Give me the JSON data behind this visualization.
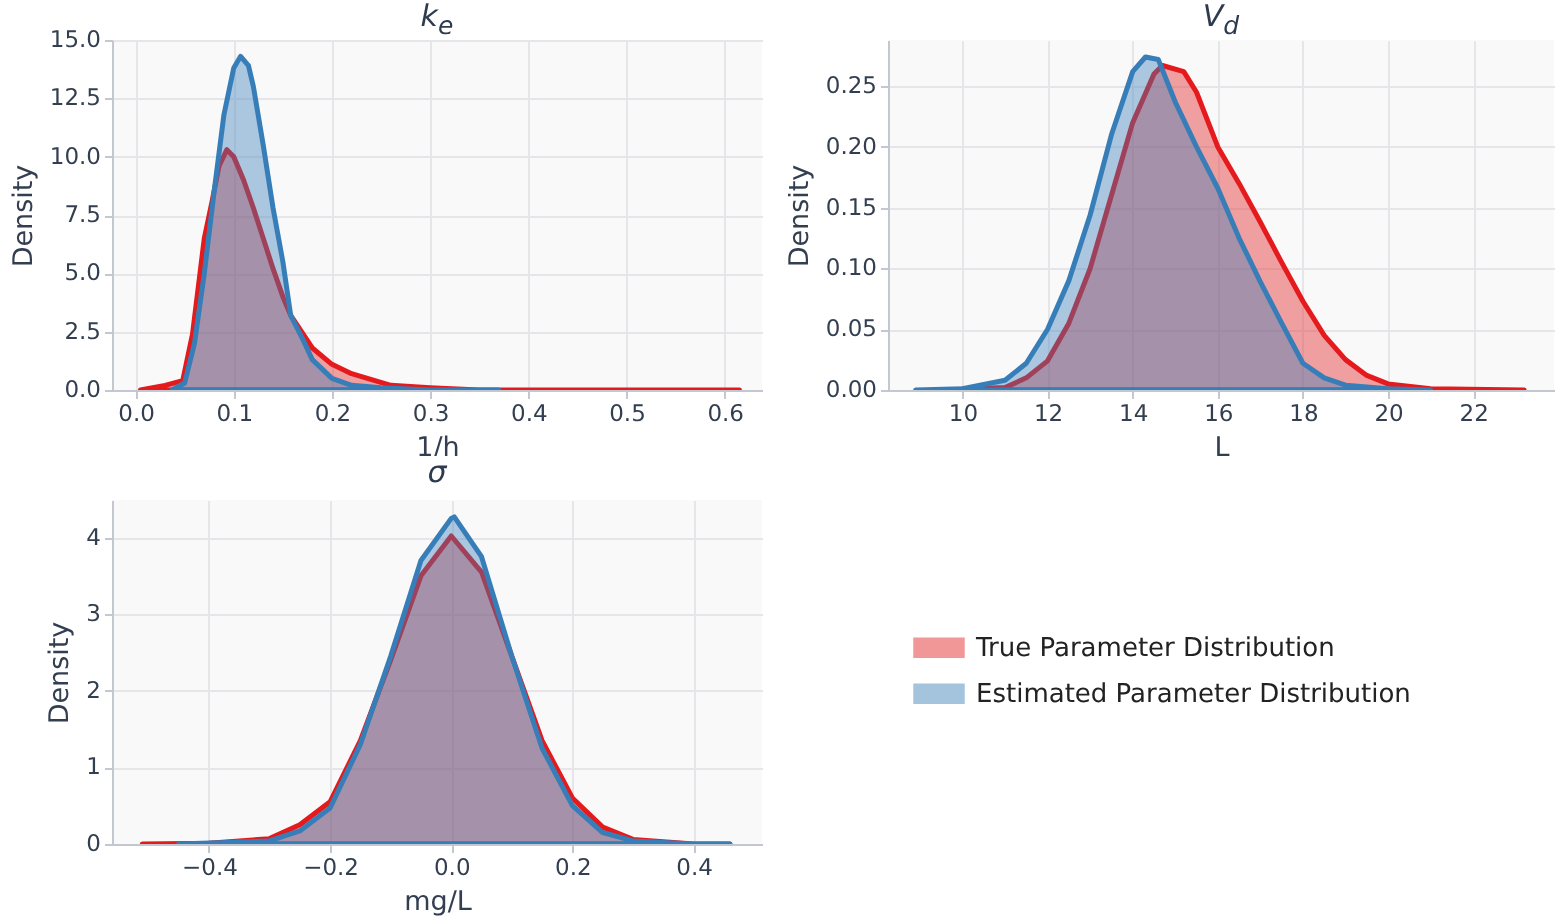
{
  "chart_data": [
    {
      "type": "area",
      "title": "k$_{e}$",
      "xlabel": "1/h",
      "ylabel": "Density",
      "xlim": [
        -0.024,
        0.638
      ],
      "ylim": [
        0,
        15
      ],
      "xticks": [
        {
          "value": 0,
          "label": "0.0"
        },
        0.1,
        0.2,
        0.3,
        0.4,
        0.5,
        0.6
      ],
      "yticks": [
        {
          "value": 0,
          "label": "0.0"
        },
        2.5,
        {
          "value": 5,
          "label": "5.0"
        },
        7.5,
        {
          "value": 10,
          "label": "10.0"
        },
        12.5,
        {
          "value": 15,
          "label": "15.0"
        }
      ],
      "grid": true,
      "series": [
        {
          "color": "#e41a1c",
          "x": [
            0.005,
            0.03,
            0.048,
            0.058,
            0.07,
            0.078,
            0.085,
            0.093,
            0.1,
            0.11,
            0.12,
            0.13,
            0.14,
            0.15,
            0.158,
            0.18,
            0.2,
            0.22,
            0.26,
            0.3,
            0.35,
            0.4,
            0.5,
            0.615
          ],
          "values": [
            0,
            0.2,
            0.4,
            2.4,
            6.5,
            8.1,
            9.6,
            10.3,
            10,
            9,
            7.8,
            6.5,
            5.2,
            4,
            3.2,
            1.8,
            1.1,
            0.7,
            0.2,
            0.1,
            0,
            0,
            0,
            0
          ]
        },
        {
          "color": "#377eb8",
          "x": [
            0.037,
            0.05,
            0.06,
            0.07,
            0.08,
            0.09,
            0.1,
            0.107,
            0.115,
            0.12,
            0.13,
            0.14,
            0.15,
            0.158,
            0.17,
            0.18,
            0.2,
            0.22,
            0.25,
            0.3,
            0.37
          ],
          "values": [
            0,
            0.3,
            2,
            5,
            8.5,
            11.8,
            13.8,
            14.3,
            13.9,
            13,
            10.5,
            7.8,
            5.5,
            3.2,
            2.2,
            1.3,
            0.5,
            0.2,
            0.1,
            0,
            0
          ]
        }
      ]
    },
    {
      "type": "area",
      "title": "V$_{d}$",
      "xlabel": "L",
      "ylabel": "Density",
      "xlim": [
        8.25,
        23.9
      ],
      "ylim": [
        0,
        0.288
      ],
      "xticks": [
        10,
        12,
        14,
        16,
        18,
        20,
        22
      ],
      "yticks": [
        {
          "value": 0,
          "label": "0.00"
        },
        0.05,
        {
          "value": 0.1,
          "label": "0.10"
        },
        0.15,
        {
          "value": 0.2,
          "label": "0.20"
        },
        0.25
      ],
      "grid": true,
      "series": [
        {
          "color": "#e41a1c",
          "x": [
            9.5,
            11,
            11.5,
            12,
            12.5,
            13,
            13.5,
            14,
            14.5,
            14.7,
            15.2,
            15.5,
            16,
            16.5,
            17,
            17.5,
            18,
            18.5,
            19,
            19.5,
            20,
            21,
            23.2
          ],
          "values": [
            0,
            0.002,
            0.01,
            0.024,
            0.055,
            0.1,
            0.16,
            0.22,
            0.26,
            0.267,
            0.262,
            0.245,
            0.2,
            0.17,
            0.138,
            0.105,
            0.073,
            0.045,
            0.025,
            0.012,
            0.005,
            0.001,
            0
          ]
        },
        {
          "color": "#377eb8",
          "x": [
            8.9,
            10,
            11,
            11.5,
            12,
            12.5,
            13,
            13.5,
            14,
            14.3,
            14.6,
            15,
            15.5,
            16,
            16.5,
            17,
            17.5,
            18,
            18.5,
            19,
            20,
            21
          ],
          "values": [
            0,
            0.001,
            0.008,
            0.022,
            0.05,
            0.09,
            0.144,
            0.21,
            0.262,
            0.274,
            0.272,
            0.237,
            0.2,
            0.166,
            0.125,
            0.089,
            0.055,
            0.022,
            0.01,
            0.004,
            0.001,
            0
          ]
        }
      ]
    },
    {
      "type": "area",
      "title": "σ",
      "xlabel": "mg/L",
      "ylabel": "Density",
      "xlim": [
        -0.56,
        0.513
      ],
      "ylim": [
        0,
        4.49
      ],
      "xticks": [
        {
          "value": -0.4,
          "label": "−0.4"
        },
        {
          "value": -0.2,
          "label": "−0.2"
        },
        {
          "value": 0,
          "label": "0.0"
        },
        0.2,
        0.4
      ],
      "yticks": [
        0,
        1,
        2,
        3,
        4
      ],
      "grid": true,
      "legend": "right",
      "series": [
        {
          "name": "True Parameter Distribution",
          "color": "#e41a1c",
          "x": [
            -0.51,
            -0.4,
            -0.3,
            -0.25,
            -0.2,
            -0.15,
            -0.1,
            -0.05,
            0,
            0.05,
            0.1,
            0.15,
            0.2,
            0.25,
            0.3,
            0.4,
            0.46
          ],
          "values": [
            0,
            0.01,
            0.07,
            0.25,
            0.55,
            1.35,
            2.4,
            3.5,
            4.02,
            3.55,
            2.45,
            1.35,
            0.6,
            0.22,
            0.06,
            0,
            0
          ]
        },
        {
          "name": "Estimated Parameter Distribution",
          "color": "#377eb8",
          "x": [
            -0.45,
            -0.3,
            -0.25,
            -0.2,
            -0.15,
            -0.1,
            -0.05,
            0,
            0.005,
            0.05,
            0.1,
            0.15,
            0.2,
            0.25,
            0.3,
            0.4,
            0.46
          ],
          "values": [
            0,
            0.04,
            0.17,
            0.47,
            1.3,
            2.45,
            3.7,
            4.25,
            4.27,
            3.75,
            2.45,
            1.25,
            0.5,
            0.15,
            0.04,
            0,
            0
          ]
        }
      ]
    }
  ]
}
